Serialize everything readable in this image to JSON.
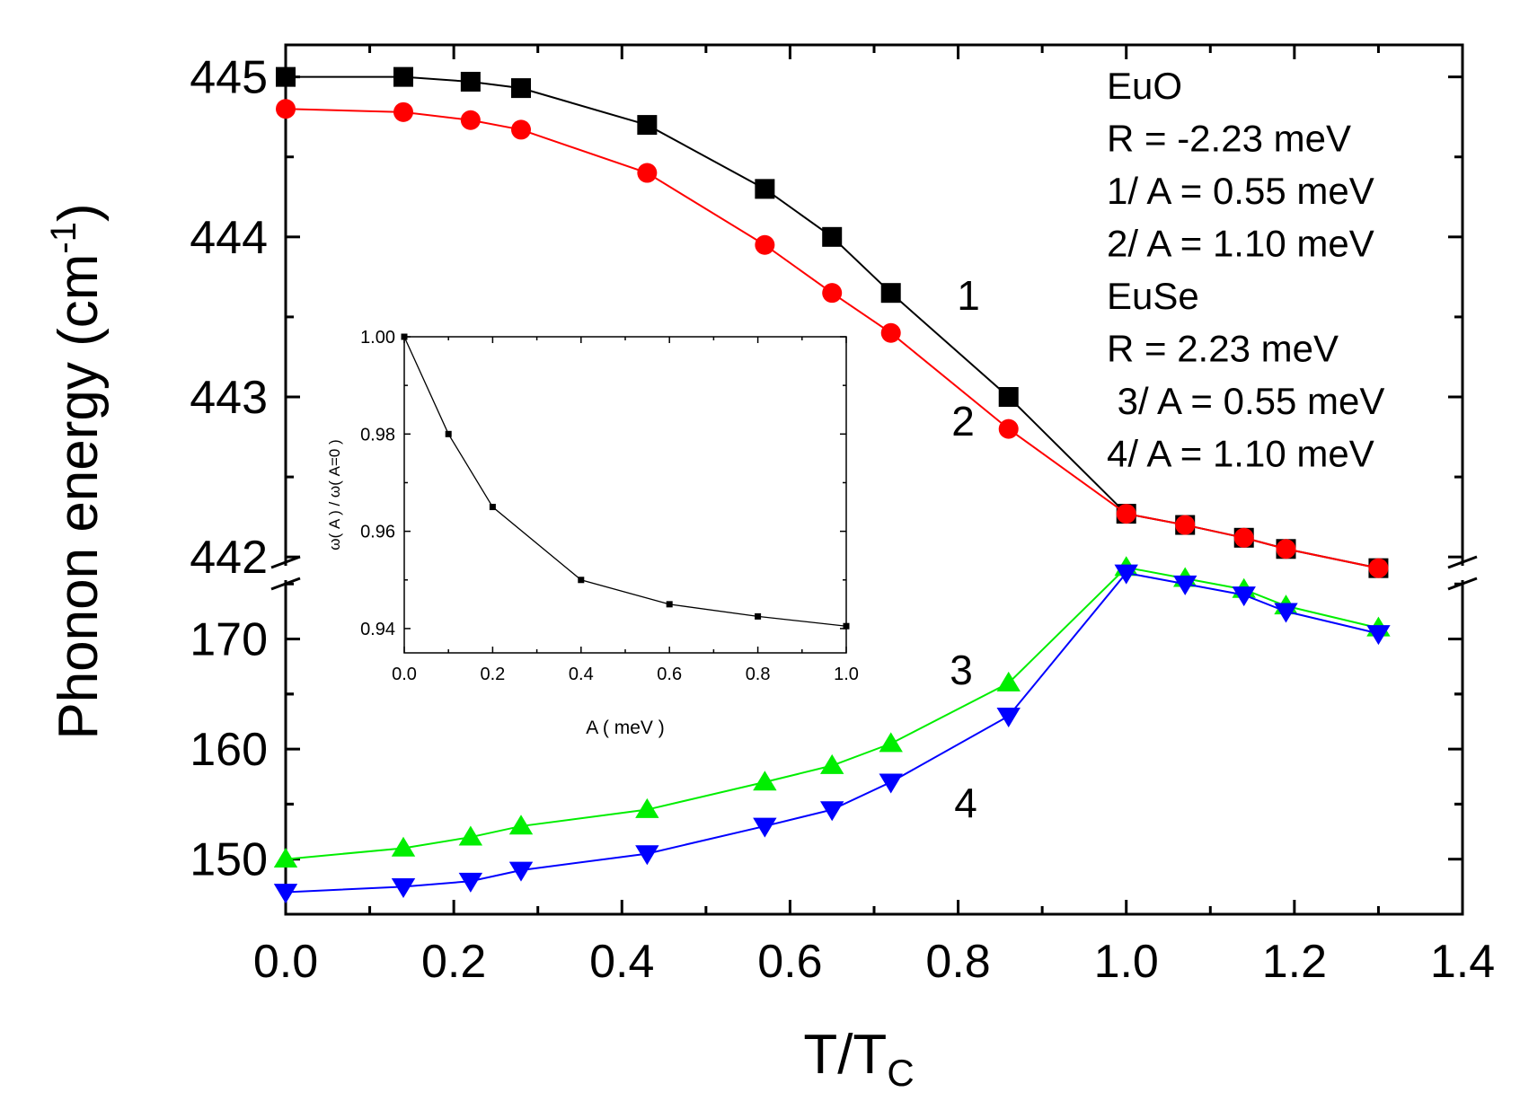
{
  "chart_data": [
    {
      "type": "line",
      "title": "",
      "xlabel": "T/T",
      "xlabel_sub": "C",
      "ylabel": "Phonon energy (cm",
      "ylabel_sup": "-1",
      "ylabel_tail": ")",
      "xlim": [
        0.0,
        1.4
      ],
      "x_ticks": [
        "0.0",
        "0.2",
        "0.4",
        "0.6",
        "0.8",
        "1.0",
        "1.2",
        "1.4"
      ],
      "y_axis_break": true,
      "upper_panel": {
        "ylim": [
          441.9,
          445.2
        ],
        "y_ticks": [
          "445",
          "444",
          "443",
          "442"
        ]
      },
      "lower_panel": {
        "ylim": [
          145,
          176
        ],
        "y_ticks": [
          "170",
          "160",
          "150"
        ]
      },
      "x": [
        0.0,
        0.14,
        0.22,
        0.28,
        0.43,
        0.57,
        0.65,
        0.72,
        0.86,
        1.0,
        1.07,
        1.14,
        1.19,
        1.3
      ],
      "series": [
        {
          "name": "1",
          "label": "1",
          "panel": "upper",
          "color": "#000000",
          "marker": "square",
          "values": [
            445.0,
            445.0,
            444.97,
            444.93,
            444.7,
            444.3,
            444.0,
            443.65,
            443.0,
            442.27,
            442.2,
            442.12,
            442.05,
            441.93
          ]
        },
        {
          "name": "2",
          "label": "2",
          "panel": "upper",
          "color": "#ff0000",
          "marker": "circle",
          "values": [
            444.8,
            444.78,
            444.73,
            444.67,
            444.4,
            443.95,
            443.65,
            443.4,
            442.8,
            442.27,
            442.2,
            442.12,
            442.05,
            441.93
          ]
        },
        {
          "name": "3",
          "label": "3",
          "panel": "lower",
          "color": "#00ee00",
          "marker": "triangle-up",
          "values": [
            150.0,
            151.0,
            152.0,
            153.0,
            154.5,
            157.0,
            158.5,
            160.5,
            166.0,
            176.5,
            175.5,
            174.5,
            173.0,
            171.0
          ]
        },
        {
          "name": "4",
          "label": "4",
          "panel": "lower",
          "color": "#0000ff",
          "marker": "triangle-down",
          "values": [
            147.0,
            147.5,
            148.0,
            149.0,
            150.5,
            153.0,
            154.5,
            157.0,
            163.0,
            176.0,
            175.0,
            174.0,
            172.5,
            170.5
          ]
        }
      ],
      "legend": {
        "placement": "top-right",
        "lines": [
          {
            "text": "EuO",
            "color": "#000000"
          },
          {
            "text": "R = -2.23 meV",
            "color": "#000000"
          },
          {
            "text": "1/ A = 0.55 meV",
            "color": "#000000"
          },
          {
            "text": "2/ A = 1.10 meV",
            "color": "#ff0000"
          },
          {
            "text": "EuSe",
            "color": "#000000"
          },
          {
            "text": "R = 2.23 meV",
            "color": "#000000"
          },
          {
            "text": " 3/ A = 0.55 meV",
            "color": "#00ee00"
          },
          {
            "text": "4/ A = 1.10 meV",
            "color": "#0000ff"
          }
        ]
      }
    },
    {
      "type": "line",
      "title": "",
      "xlabel": "A ( meV )",
      "ylabel": "ω( A ) / ω( A=0 )",
      "xlim": [
        0.0,
        1.0
      ],
      "ylim": [
        0.935,
        1.0
      ],
      "x_ticks": [
        "0.0",
        "0.2",
        "0.4",
        "0.6",
        "0.8",
        "1.0"
      ],
      "y_ticks": [
        "1.00",
        "0.98",
        "0.96",
        "0.94"
      ],
      "x": [
        0.0,
        0.1,
        0.2,
        0.4,
        0.6,
        0.8,
        1.0
      ],
      "values": [
        1.0,
        0.98,
        0.965,
        0.95,
        0.945,
        0.9425,
        0.9405
      ],
      "color": "#000000",
      "marker": "square"
    }
  ]
}
